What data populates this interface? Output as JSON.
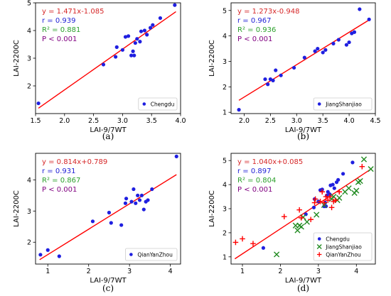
{
  "chart_data": [
    {
      "type": "scatter",
      "panel_label": "(a)",
      "xlabel": "LAI-9/7WT",
      "ylabel": "LAI-2200C",
      "xlim": [
        1.5,
        4.0
      ],
      "ylim": [
        1.0,
        5.0
      ],
      "xticks": [
        "1.5",
        "2.0",
        "2.5",
        "3.0",
        "3.5",
        "4.0"
      ],
      "yticks": [
        "2",
        "3",
        "4",
        "5"
      ],
      "xtick_values": [
        1.5,
        2.0,
        2.5,
        3.0,
        3.5,
        4.0
      ],
      "ytick_values": [
        2,
        3,
        4,
        5
      ],
      "annotations": [
        {
          "text": "y = 1.471x-1.085",
          "color": "#d62728"
        },
        {
          "text": "r = 0.939",
          "color": "#1f1fd6"
        },
        {
          "text": "R² = 0.881",
          "color": "#2ca02c"
        },
        {
          "text": "P < 0.001",
          "color": "#800080"
        }
      ],
      "fit": {
        "slope": 1.471,
        "intercept": -1.085,
        "x_range": [
          1.55,
          3.92
        ],
        "color": "#ff0000"
      },
      "legend": "bottom-right",
      "series": [
        {
          "name": "Chengdu",
          "marker": "dot",
          "color": "#1f1fe0",
          "x": [
            1.55,
            2.67,
            2.88,
            2.9,
            3.0,
            3.05,
            3.1,
            3.15,
            3.2,
            3.18,
            3.22,
            3.25,
            3.3,
            3.32,
            3.38,
            3.42,
            3.48,
            3.52,
            3.65,
            3.9
          ],
          "y": [
            1.37,
            2.77,
            3.05,
            3.4,
            3.3,
            3.77,
            3.8,
            3.1,
            3.1,
            3.25,
            3.55,
            3.7,
            3.6,
            3.97,
            4.0,
            3.85,
            4.1,
            4.2,
            4.45,
            4.92
          ]
        }
      ]
    },
    {
      "type": "scatter",
      "panel_label": "(b)",
      "xlabel": "LAI-9/7WT",
      "ylabel": "LAI-2200C",
      "xlim": [
        1.75,
        4.5
      ],
      "ylim": [
        0.95,
        5.3
      ],
      "xticks": [
        "2.0",
        "2.5",
        "3.0",
        "3.5",
        "4.0",
        "4.5"
      ],
      "yticks": [
        "1",
        "2",
        "3",
        "4",
        "5"
      ],
      "xtick_values": [
        2.0,
        2.5,
        3.0,
        3.5,
        4.0,
        4.5
      ],
      "ytick_values": [
        1,
        2,
        3,
        4,
        5
      ],
      "annotations": [
        {
          "text": "y = 1.273x-0.948",
          "color": "#d62728"
        },
        {
          "text": "r = 0.967",
          "color": "#1f1fd6"
        },
        {
          "text": "R² = 0.936",
          "color": "#2ca02c"
        },
        {
          "text": "P < 0.001",
          "color": "#800080"
        }
      ],
      "fit": {
        "slope": 1.273,
        "intercept": -0.948,
        "x_range": [
          1.9,
          4.38
        ],
        "color": "#ff0000"
      },
      "legend": "bottom-right",
      "series": [
        {
          "name": "JiangShanjiao",
          "marker": "dot",
          "color": "#1f1fe0",
          "x": [
            1.9,
            2.4,
            2.45,
            2.5,
            2.55,
            2.6,
            2.7,
            2.95,
            3.15,
            3.35,
            3.4,
            3.5,
            3.55,
            3.7,
            3.8,
            3.95,
            4.0,
            4.05,
            4.1,
            4.2,
            4.38
          ],
          "y": [
            1.1,
            2.3,
            2.1,
            2.3,
            2.25,
            2.65,
            2.45,
            2.75,
            3.15,
            3.4,
            3.5,
            3.35,
            3.45,
            3.7,
            3.85,
            3.65,
            3.75,
            4.1,
            4.15,
            5.05,
            4.65
          ]
        }
      ]
    },
    {
      "type": "scatter",
      "panel_label": "(c)",
      "xlabel": "LAI-9/7WT",
      "ylabel": "LAI-2200C",
      "xlim": [
        0.7,
        4.25
      ],
      "ylim": [
        1.3,
        4.85
      ],
      "xticks": [
        "1",
        "2",
        "3",
        "4"
      ],
      "yticks": [
        "2",
        "3",
        "4"
      ],
      "xtick_values": [
        1,
        2,
        3,
        4
      ],
      "ytick_values": [
        2,
        3,
        4
      ],
      "annotations": [
        {
          "text": "y = 0.814x+0.789",
          "color": "#d62728"
        },
        {
          "text": "r = 0.931",
          "color": "#1f1fd6"
        },
        {
          "text": "R² = 0.867",
          "color": "#2ca02c"
        },
        {
          "text": "P < 0.001",
          "color": "#800080"
        }
      ],
      "fit": {
        "slope": 0.814,
        "intercept": 0.789,
        "x_range": [
          0.8,
          4.15
        ],
        "color": "#ff0000"
      },
      "legend": "bottom-right",
      "series": [
        {
          "name": "QianYanZhou",
          "marker": "dot",
          "color": "#1f1fe0",
          "x": [
            0.82,
            1.0,
            1.28,
            2.1,
            2.5,
            2.55,
            2.8,
            2.9,
            2.92,
            3.05,
            3.1,
            3.15,
            3.2,
            3.25,
            3.3,
            3.35,
            3.4,
            3.45,
            3.55,
            4.15
          ],
          "y": [
            1.6,
            1.75,
            1.55,
            2.67,
            2.95,
            2.62,
            2.55,
            3.25,
            3.4,
            3.3,
            3.7,
            3.25,
            3.5,
            3.35,
            3.5,
            3.05,
            3.3,
            3.35,
            3.7,
            4.75
          ]
        }
      ]
    },
    {
      "type": "scatter",
      "panel_label": "(d)",
      "xlabel": "LAI-9/7WT",
      "ylabel": "LAI-2200C",
      "xlim": [
        0.7,
        4.5
      ],
      "ylim": [
        0.7,
        5.3
      ],
      "xticks": [
        "1",
        "2",
        "3",
        "4"
      ],
      "yticks": [
        "1",
        "2",
        "3",
        "4",
        "5"
      ],
      "xtick_values": [
        1,
        2,
        3,
        4
      ],
      "ytick_values": [
        1,
        2,
        3,
        4,
        5
      ],
      "annotations": [
        {
          "text": "y = 1.040x+0.085",
          "color": "#d62728"
        },
        {
          "text": "r = 0.897",
          "color": "#1f1fd6"
        },
        {
          "text": "R² = 0.804",
          "color": "#2ca02c"
        },
        {
          "text": "P < 0.001",
          "color": "#800080"
        }
      ],
      "fit": {
        "slope": 1.04,
        "intercept": 0.085,
        "x_range": [
          0.8,
          4.4
        ],
        "color": "#ff0000"
      },
      "legend": "bottom-right",
      "series": [
        {
          "name": "Chengdu",
          "marker": "dot",
          "color": "#1f1fe0",
          "x": [
            1.55,
            2.67,
            2.88,
            2.9,
            3.0,
            3.05,
            3.1,
            3.15,
            3.2,
            3.18,
            3.22,
            3.25,
            3.3,
            3.32,
            3.38,
            3.42,
            3.48,
            3.52,
            3.65,
            3.9
          ],
          "y": [
            1.37,
            2.77,
            3.05,
            3.4,
            3.3,
            3.77,
            3.8,
            3.1,
            3.1,
            3.25,
            3.55,
            3.7,
            3.6,
            3.97,
            4.0,
            3.85,
            4.1,
            4.2,
            4.45,
            4.92
          ]
        },
        {
          "name": "JiangShanjiao",
          "marker": "x",
          "color": "#228b22",
          "x": [
            1.9,
            2.4,
            2.45,
            2.5,
            2.55,
            2.6,
            2.7,
            2.95,
            3.15,
            3.35,
            3.4,
            3.5,
            3.55,
            3.7,
            3.8,
            3.95,
            4.0,
            4.05,
            4.1,
            4.2,
            4.38
          ],
          "y": [
            1.1,
            2.3,
            2.1,
            2.3,
            2.25,
            2.65,
            2.45,
            2.75,
            3.15,
            3.4,
            3.5,
            3.35,
            3.45,
            3.7,
            3.85,
            3.65,
            3.75,
            4.1,
            4.15,
            5.05,
            4.65
          ]
        },
        {
          "name": "QianYanZhou",
          "marker": "plus",
          "color": "#ff0000",
          "x": [
            0.82,
            1.0,
            1.28,
            2.1,
            2.5,
            2.55,
            2.8,
            2.9,
            2.92,
            3.05,
            3.1,
            3.15,
            3.2,
            3.25,
            3.3,
            3.35,
            3.4,
            3.45,
            3.55,
            4.15
          ],
          "y": [
            1.6,
            1.75,
            1.55,
            2.67,
            2.95,
            2.62,
            2.55,
            3.25,
            3.4,
            3.3,
            3.7,
            3.25,
            3.5,
            3.35,
            3.5,
            3.05,
            3.3,
            3.35,
            3.7,
            4.75
          ]
        }
      ]
    }
  ]
}
